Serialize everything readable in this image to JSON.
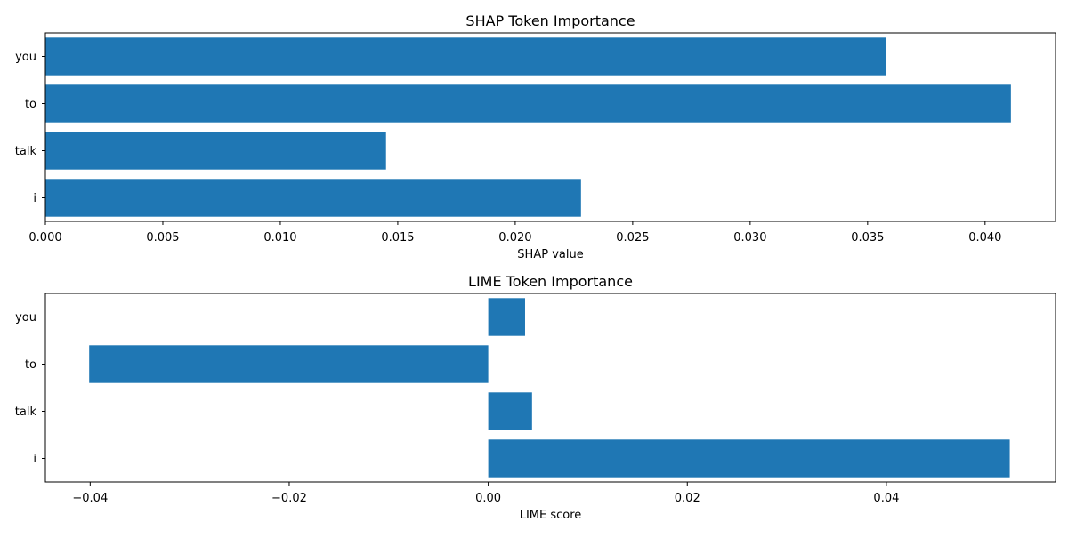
{
  "colors": {
    "bar": "#1f77b4",
    "axis": "#000000",
    "background": "#ffffff"
  },
  "chart_data": [
    {
      "type": "bar",
      "orientation": "horizontal",
      "title": "SHAP Token Importance",
      "xlabel": "SHAP value",
      "ylabel": "",
      "categories": [
        "you",
        "to",
        "talk",
        "i"
      ],
      "values": [
        0.0358,
        0.0411,
        0.0145,
        0.0228
      ],
      "xlim": [
        0.0,
        0.043
      ],
      "xticks": [
        0.0,
        0.005,
        0.01,
        0.015,
        0.02,
        0.025,
        0.03,
        0.035,
        0.04
      ],
      "xtick_labels": [
        "0.000",
        "0.005",
        "0.010",
        "0.015",
        "0.020",
        "0.025",
        "0.030",
        "0.035",
        "0.040"
      ],
      "grid": false,
      "legend": "none"
    },
    {
      "type": "bar",
      "orientation": "horizontal",
      "title": "LIME Token Importance",
      "xlabel": "LIME score",
      "ylabel": "",
      "categories": [
        "you",
        "to",
        "talk",
        "i"
      ],
      "values": [
        0.0037,
        -0.0401,
        0.0044,
        0.0524
      ],
      "xlim": [
        -0.0445,
        0.057
      ],
      "xticks": [
        -0.04,
        -0.02,
        0.0,
        0.02,
        0.04
      ],
      "xtick_labels": [
        "−0.04",
        "−0.02",
        "0.00",
        "0.02",
        "0.04"
      ],
      "grid": false,
      "legend": "none"
    }
  ]
}
